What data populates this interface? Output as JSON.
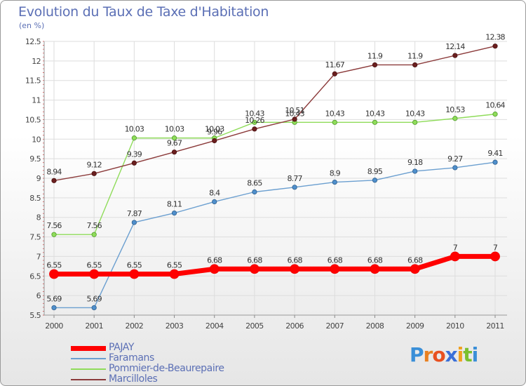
{
  "header": {
    "title": "Evolution du Taux de Taxe d'Habitation",
    "subtitle": "(en %)"
  },
  "logo": {
    "text": "Proxiti"
  },
  "chart_data": {
    "type": "line",
    "x": [
      "2000",
      "2001",
      "2002",
      "2003",
      "2004",
      "2005",
      "2006",
      "2007",
      "2008",
      "2009",
      "2010",
      "2011"
    ],
    "ylim": [
      5.5,
      12.5
    ],
    "yticks": [
      "5.5",
      "6",
      "6.5",
      "7",
      "7.5",
      "8",
      "8.5",
      "9",
      "9.5",
      "10",
      "10.5",
      "11",
      "11.5",
      "12",
      "12.5"
    ],
    "grid": true,
    "legend_placement": "bottom-left",
    "series": [
      {
        "name": "PAJAY",
        "color": "#ff0000",
        "values": [
          6.55,
          6.55,
          6.55,
          6.55,
          6.68,
          6.68,
          6.68,
          6.68,
          6.68,
          6.68,
          7,
          7
        ],
        "labels": [
          "6.55",
          "6.55",
          "6.55",
          "6.55",
          "6.68",
          "6.68",
          "6.68",
          "6.68",
          "6.68",
          "6.68",
          "7",
          "7"
        ]
      },
      {
        "name": "Faramans",
        "color": "#6b9fd0",
        "values": [
          5.69,
          5.69,
          7.87,
          8.11,
          8.4,
          8.65,
          8.77,
          8.9,
          8.95,
          9.18,
          9.27,
          9.41
        ],
        "labels": [
          "5.69",
          "5.69",
          "7.87",
          "8.11",
          "8.4",
          "8.65",
          "8.77",
          "8.9",
          "8.95",
          "9.18",
          "9.27",
          "9.41"
        ]
      },
      {
        "name": "Pommier-de-Beaurepaire",
        "color": "#8fdc5a",
        "values": [
          7.56,
          7.56,
          10.03,
          10.03,
          10.03,
          10.43,
          10.43,
          10.43,
          10.43,
          10.43,
          10.53,
          10.64
        ],
        "labels": [
          "7.56",
          "7.56",
          "10.03",
          "10.03",
          "10.03",
          "10.43",
          "10.43",
          "10.43",
          "10.43",
          "10.43",
          "10.53",
          "10.64"
        ]
      },
      {
        "name": "Marcilloles",
        "color": "#8b3a3a",
        "values": [
          8.94,
          9.12,
          9.39,
          9.67,
          9.96,
          10.26,
          10.51,
          11.67,
          11.9,
          11.9,
          12.14,
          12.38
        ],
        "labels": [
          "8.94",
          "9.12",
          "9.39",
          "9.67",
          "9.96",
          "10.26",
          "10.51",
          "11.67",
          "11.9",
          "11.9",
          "12.14",
          "12.38"
        ]
      }
    ]
  }
}
